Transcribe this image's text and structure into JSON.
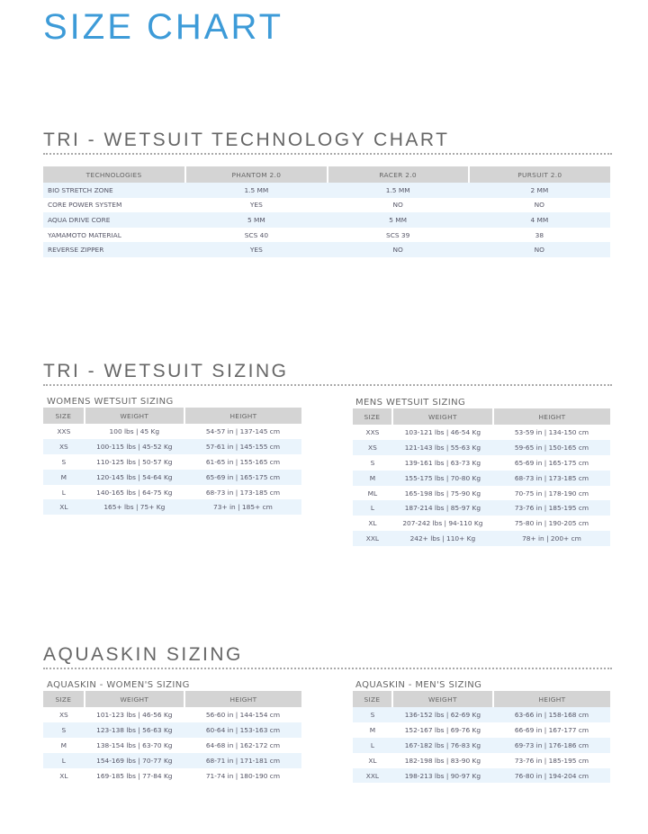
{
  "title": "SIZE CHART",
  "technology": {
    "heading": "TRI - WETSUIT TECHNOLOGY CHART",
    "columns": [
      "TECHNOLOGIES",
      "PHANTOM 2.0",
      "RACER 2.0",
      "PURSUIT 2.0"
    ],
    "rows": [
      [
        "BIO STRETCH ZONE",
        "1.5 MM",
        "1.5 MM",
        "2 MM"
      ],
      [
        "CORE POWER SYSTEM",
        "YES",
        "NO",
        "NO"
      ],
      [
        "AQUA DRIVE CORE",
        "5 MM",
        "5 MM",
        "4 MM"
      ],
      [
        "YAMAMOTO MATERIAL",
        "SCS 40",
        "SCS 39",
        "38"
      ],
      [
        "REVERSE ZIPPER",
        "YES",
        "NO",
        "NO"
      ]
    ]
  },
  "wetsuit": {
    "heading": "TRI - WETSUIT SIZING",
    "womens": {
      "label": "WOMENS WETSUIT SIZING",
      "columns": [
        "SIZE",
        "WEIGHT",
        "HEIGHT"
      ],
      "rows": [
        [
          "XXS",
          "100 lbs | 45 Kg",
          "54-57 in | 137-145 cm"
        ],
        [
          "XS",
          "100-115 lbs | 45-52 Kg",
          "57-61 in | 145-155 cm"
        ],
        [
          "S",
          "110-125 lbs | 50-57 Kg",
          "61-65 in | 155-165 cm"
        ],
        [
          "M",
          "120-145 lbs | 54-64 Kg",
          "65-69 in | 165-175 cm"
        ],
        [
          "L",
          "140-165 lbs | 64-75 Kg",
          "68-73 in | 173-185 cm"
        ],
        [
          "XL",
          "165+ lbs | 75+ Kg",
          "73+ in | 185+ cm"
        ]
      ]
    },
    "mens": {
      "label": "MENS WETSUIT SIZING",
      "columns": [
        "SIZE",
        "WEIGHT",
        "HEIGHT"
      ],
      "rows": [
        [
          "XXS",
          "103-121 lbs | 46-54 Kg",
          "53-59 in | 134-150 cm"
        ],
        [
          "XS",
          "121-143 lbs | 55-63 Kg",
          "59-65 in | 150-165 cm"
        ],
        [
          "S",
          "139-161 lbs | 63-73 Kg",
          "65-69 in | 165-175 cm"
        ],
        [
          "M",
          "155-175 lbs | 70-80 Kg",
          "68-73 in | 173-185 cm"
        ],
        [
          "ML",
          "165-198 lbs | 75-90 Kg",
          "70-75 in | 178-190 cm"
        ],
        [
          "L",
          "187-214 lbs | 85-97 Kg",
          "73-76 in | 185-195 cm"
        ],
        [
          "XL",
          "207-242 lbs | 94-110 Kg",
          "75-80 in | 190-205 cm"
        ],
        [
          "XXL",
          "242+ lbs | 110+ Kg",
          "78+ in | 200+ cm"
        ]
      ]
    }
  },
  "aquaskin": {
    "heading": "AQUASKIN SIZING",
    "womens": {
      "label": "AQUASKIN - WOMEN'S SIZING",
      "columns": [
        "SIZE",
        "WEIGHT",
        "HEIGHT"
      ],
      "rows": [
        [
          "XS",
          "101-123 lbs | 46-56 Kg",
          "56-60 in | 144-154 cm"
        ],
        [
          "S",
          "123-138 lbs | 56-63 Kg",
          "60-64 in | 153-163 cm"
        ],
        [
          "M",
          "138-154 lbs | 63-70 Kg",
          "64-68 in | 162-172 cm"
        ],
        [
          "L",
          "154-169 lbs | 70-77 Kg",
          "68-71 in | 171-181 cm"
        ],
        [
          "XL",
          "169-185 lbs | 77-84 Kg",
          "71-74 in | 180-190 cm"
        ]
      ]
    },
    "mens": {
      "label": "AQUASKIN - MEN'S SIZING",
      "columns": [
        "SIZE",
        "WEIGHT",
        "HEIGHT"
      ],
      "rows": [
        [
          "S",
          "136-152 lbs | 62-69 Kg",
          "63-66 in | 158-168 cm"
        ],
        [
          "M",
          "152-167 lbs | 69-76 Kg",
          "66-69 in | 167-177 cm"
        ],
        [
          "L",
          "167-182 lbs | 76-83 Kg",
          "69-73 in | 176-186 cm"
        ],
        [
          "XL",
          "182-198 lbs | 83-90 Kg",
          "73-76 in | 185-195 cm"
        ],
        [
          "XXL",
          "198-213 lbs | 90-97 Kg",
          "76-80 in | 194-204 cm"
        ]
      ]
    }
  },
  "colors": {
    "accent": "#3d9bd8",
    "header_bg": "#d4d4d4",
    "stripe": "#eaf4fc"
  }
}
